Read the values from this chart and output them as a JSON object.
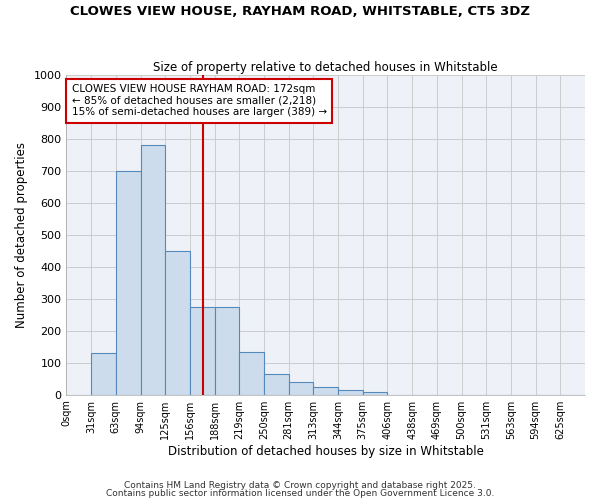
{
  "title": "CLOWES VIEW HOUSE, RAYHAM ROAD, WHITSTABLE, CT5 3DZ",
  "subtitle": "Size of property relative to detached houses in Whitstable",
  "xlabel": "Distribution of detached houses by size in Whitstable",
  "ylabel": "Number of detached properties",
  "bar_color": "#ccdcec",
  "bar_edge_color": "#5588bb",
  "background_color": "#eef2f8",
  "grid_color": "#cccccc",
  "fig_background": "#ffffff",
  "bin_labels": [
    "0sqm",
    "31sqm",
    "63sqm",
    "94sqm",
    "125sqm",
    "156sqm",
    "188sqm",
    "219sqm",
    "250sqm",
    "281sqm",
    "313sqm",
    "344sqm",
    "375sqm",
    "406sqm",
    "438sqm",
    "469sqm",
    "500sqm",
    "531sqm",
    "563sqm",
    "594sqm",
    "625sqm"
  ],
  "bar_heights": [
    0,
    130,
    700,
    780,
    450,
    275,
    275,
    135,
    65,
    40,
    25,
    15,
    10,
    0,
    0,
    0,
    0,
    0,
    0,
    0,
    0
  ],
  "ylim": [
    0,
    1000
  ],
  "yticks": [
    0,
    100,
    200,
    300,
    400,
    500,
    600,
    700,
    800,
    900,
    1000
  ],
  "red_line_x": 5.52,
  "annotation_text": "CLOWES VIEW HOUSE RAYHAM ROAD: 172sqm\n← 85% of detached houses are smaller (2,218)\n15% of semi-detached houses are larger (389) →",
  "annotation_box_color": "#ffffff",
  "annotation_box_edge": "#cc0000",
  "footer_line1": "Contains HM Land Registry data © Crown copyright and database right 2025.",
  "footer_line2": "Contains public sector information licensed under the Open Government Licence 3.0."
}
